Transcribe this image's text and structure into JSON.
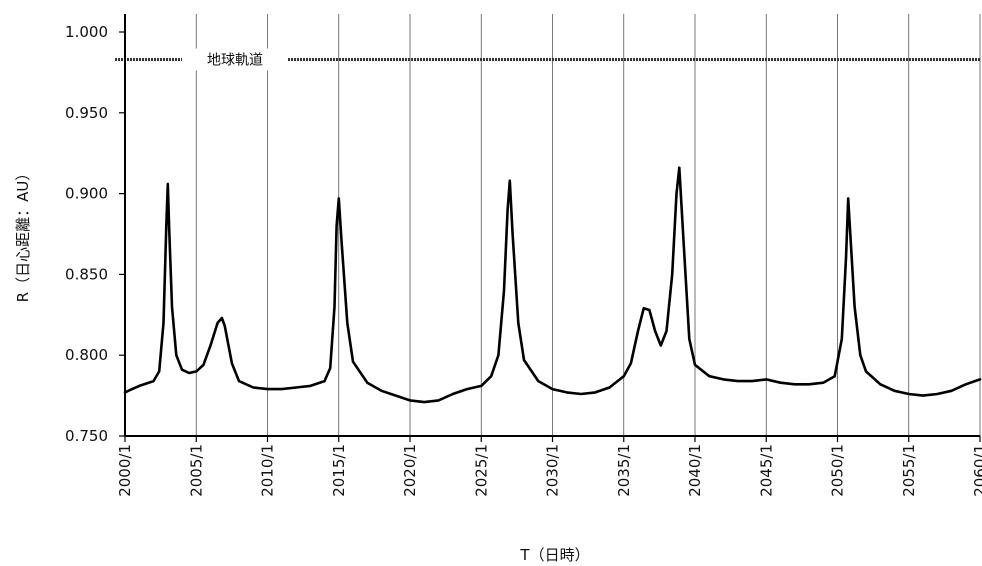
{
  "chart_data": {
    "type": "line",
    "title": "",
    "xlabel": "T（日時）",
    "ylabel": "R（日心距離：AU）",
    "ylim": [
      0.75,
      1.0
    ],
    "y_ticks": [
      "1.000",
      "0.950",
      "0.900",
      "0.850",
      "0.800",
      "0.750"
    ],
    "x_ticks": [
      "2000/1",
      "2005/1",
      "2010/1",
      "2015/1",
      "2020/1",
      "2025/1",
      "2030/1",
      "2035/1",
      "2040/1",
      "2045/1",
      "2050/1",
      "2055/1",
      "2060/1"
    ],
    "xlim": [
      2000,
      2060
    ],
    "grid": "vertical",
    "reference_line": {
      "label": "地球軌道",
      "value": 0.983
    },
    "series": [
      {
        "name": "",
        "x": [
          2000.0,
          2000.5,
          2001.0,
          2002.0,
          2002.4,
          2002.7,
          2002.9,
          2003.0,
          2003.1,
          2003.3,
          2003.6,
          2004.0,
          2004.5,
          2005.0,
          2005.5,
          2006.0,
          2006.5,
          2006.8,
          2007.0,
          2007.5,
          2008.0,
          2009.0,
          2010.0,
          2011.0,
          2012.0,
          2013.0,
          2014.0,
          2014.4,
          2014.7,
          2014.85,
          2015.0,
          2015.2,
          2015.6,
          2016.0,
          2017.0,
          2018.0,
          2019.0,
          2020.0,
          2021.0,
          2022.0,
          2023.0,
          2024.0,
          2025.0,
          2025.7,
          2026.2,
          2026.6,
          2026.85,
          2027.0,
          2027.2,
          2027.6,
          2028.0,
          2029.0,
          2030.0,
          2031.0,
          2032.0,
          2033.0,
          2034.0,
          2035.0,
          2035.5,
          2036.0,
          2036.4,
          2036.8,
          2037.2,
          2037.6,
          2038.0,
          2038.4,
          2038.7,
          2038.9,
          2039.2,
          2039.6,
          2040.0,
          2041.0,
          2042.0,
          2043.0,
          2044.0,
          2045.0,
          2046.0,
          2047.0,
          2048.0,
          2049.0,
          2049.8,
          2050.3,
          2050.6,
          2050.75,
          2050.9,
          2051.2,
          2051.6,
          2052.0,
          2053.0,
          2054.0,
          2055.0,
          2056.0,
          2057.0,
          2058.0,
          2059.0,
          2060.0
        ],
        "values": [
          0.777,
          0.779,
          0.781,
          0.784,
          0.79,
          0.82,
          0.88,
          0.906,
          0.878,
          0.83,
          0.8,
          0.791,
          0.789,
          0.79,
          0.794,
          0.806,
          0.82,
          0.823,
          0.818,
          0.795,
          0.784,
          0.78,
          0.779,
          0.779,
          0.78,
          0.781,
          0.784,
          0.792,
          0.83,
          0.88,
          0.897,
          0.87,
          0.82,
          0.796,
          0.783,
          0.778,
          0.775,
          0.772,
          0.771,
          0.772,
          0.776,
          0.779,
          0.781,
          0.787,
          0.8,
          0.84,
          0.89,
          0.908,
          0.875,
          0.82,
          0.797,
          0.784,
          0.779,
          0.777,
          0.776,
          0.777,
          0.78,
          0.787,
          0.795,
          0.815,
          0.829,
          0.828,
          0.815,
          0.806,
          0.815,
          0.85,
          0.9,
          0.916,
          0.87,
          0.81,
          0.794,
          0.787,
          0.785,
          0.784,
          0.784,
          0.785,
          0.783,
          0.782,
          0.782,
          0.783,
          0.787,
          0.81,
          0.86,
          0.897,
          0.875,
          0.83,
          0.8,
          0.79,
          0.782,
          0.778,
          0.776,
          0.775,
          0.776,
          0.778,
          0.782,
          0.785
        ]
      }
    ]
  }
}
